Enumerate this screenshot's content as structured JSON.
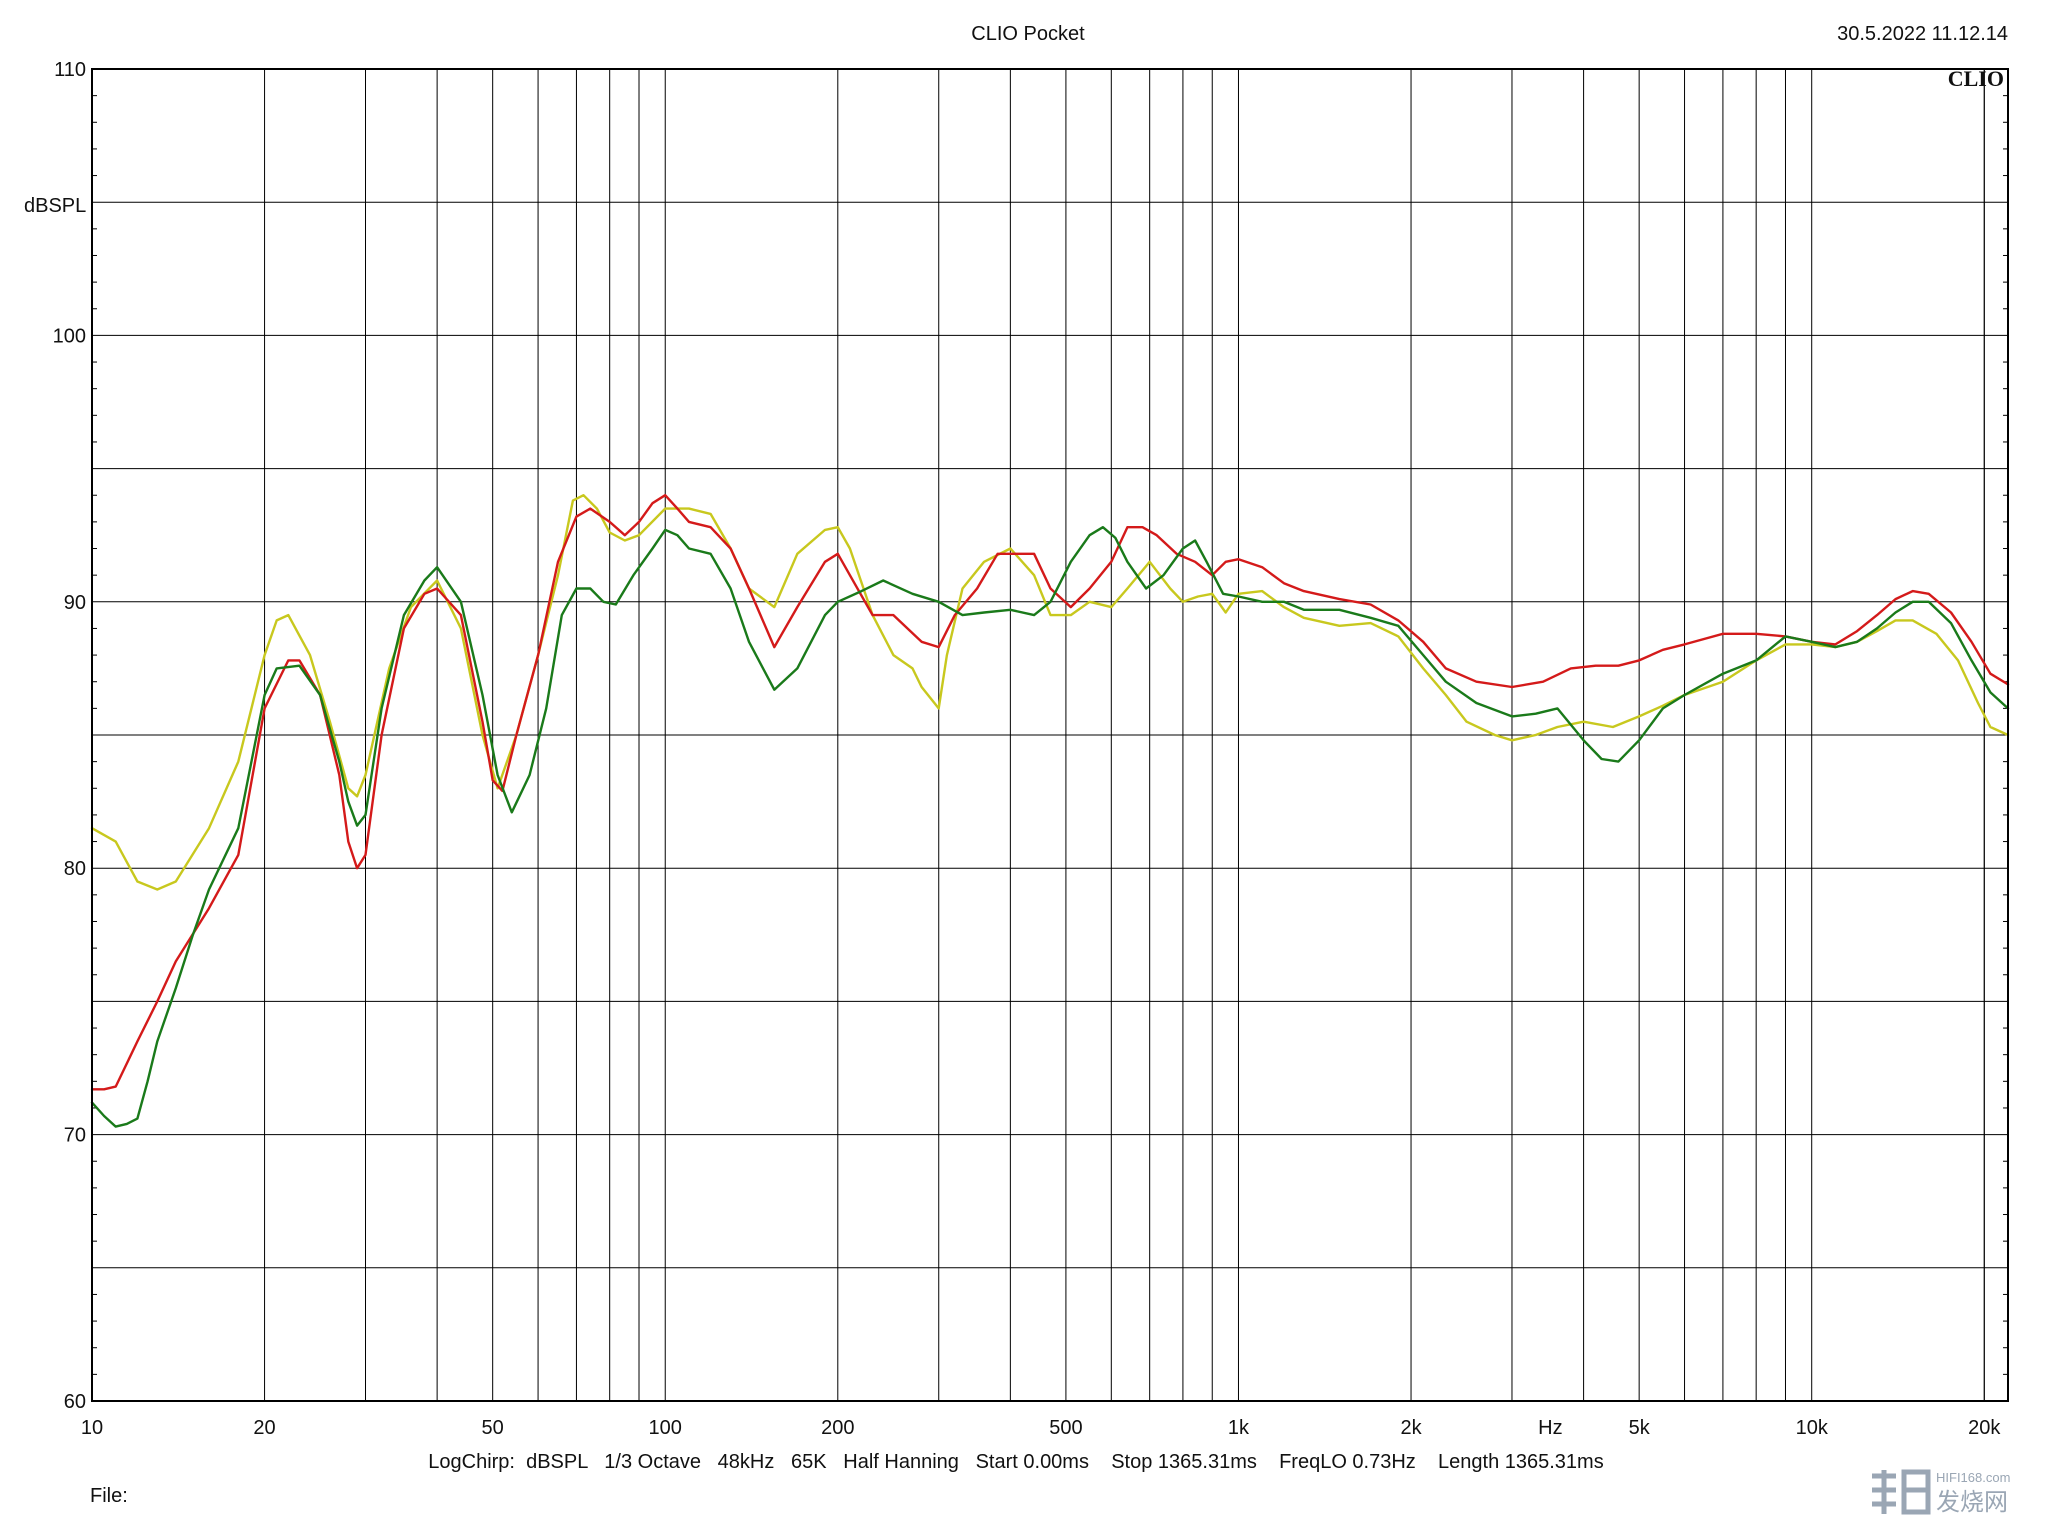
{
  "header": {
    "title": "CLIO Pocket",
    "timestamp": "30.5.2022 11.12.14",
    "brand": "CLIO"
  },
  "footer": {
    "settings": "LogChirp:  dBSPL   1/3 Octave   48kHz   65K   Half Hanning   Start 0.00ms    Stop 1365.31ms    FreqLO 0.73Hz    Length 1365.31ms",
    "file_label": "File:"
  },
  "watermark": {
    "site": "HIFI168.com",
    "name": "发烧网"
  },
  "chart_data": {
    "type": "line",
    "title": "",
    "xlabel": "Hz",
    "ylabel": "dBSPL",
    "x_scale": "log",
    "xlim": [
      10,
      22000
    ],
    "ylim": [
      60,
      110
    ],
    "grid": true,
    "y_ticks": [
      60,
      70,
      80,
      90,
      100,
      110
    ],
    "x_ticks": [
      {
        "value": 10,
        "label": "10"
      },
      {
        "value": 20,
        "label": "20"
      },
      {
        "value": 50,
        "label": "50"
      },
      {
        "value": 100,
        "label": "100"
      },
      {
        "value": 200,
        "label": "200"
      },
      {
        "value": 500,
        "label": "500"
      },
      {
        "value": 1000,
        "label": "1k"
      },
      {
        "value": 2000,
        "label": "2k"
      },
      {
        "value": 5000,
        "label": "5k"
      },
      {
        "value": 10000,
        "label": "10k"
      },
      {
        "value": 20000,
        "label": "20k"
      }
    ],
    "x_unit_label": {
      "label": "Hz",
      "at": 3500
    },
    "series": [
      {
        "color": "#c8c81e",
        "points": [
          [
            10,
            81.5
          ],
          [
            11,
            81.0
          ],
          [
            12,
            79.5
          ],
          [
            13,
            79.2
          ],
          [
            14,
            79.5
          ],
          [
            16,
            81.5
          ],
          [
            18,
            84.0
          ],
          [
            20,
            88.0
          ],
          [
            21,
            89.3
          ],
          [
            22,
            89.5
          ],
          [
            24,
            88.0
          ],
          [
            26,
            85.5
          ],
          [
            28,
            83.0
          ],
          [
            29,
            82.7
          ],
          [
            30,
            83.5
          ],
          [
            33,
            87.5
          ],
          [
            36,
            89.8
          ],
          [
            40,
            90.8
          ],
          [
            44,
            89.0
          ],
          [
            48,
            85.0
          ],
          [
            51,
            83.0
          ],
          [
            55,
            85.0
          ],
          [
            60,
            88.0
          ],
          [
            65,
            91.0
          ],
          [
            69,
            93.8
          ],
          [
            72,
            94.0
          ],
          [
            76,
            93.5
          ],
          [
            80,
            92.6
          ],
          [
            85,
            92.3
          ],
          [
            90,
            92.5
          ],
          [
            100,
            93.5
          ],
          [
            110,
            93.5
          ],
          [
            120,
            93.3
          ],
          [
            130,
            92.0
          ],
          [
            140,
            90.5
          ],
          [
            155,
            89.8
          ],
          [
            170,
            91.8
          ],
          [
            190,
            92.7
          ],
          [
            200,
            92.8
          ],
          [
            210,
            92.0
          ],
          [
            230,
            89.5
          ],
          [
            250,
            88.0
          ],
          [
            270,
            87.5
          ],
          [
            280,
            86.8
          ],
          [
            300,
            86.0
          ],
          [
            310,
            88.0
          ],
          [
            330,
            90.5
          ],
          [
            360,
            91.5
          ],
          [
            400,
            92.0
          ],
          [
            440,
            91.0
          ],
          [
            470,
            89.5
          ],
          [
            510,
            89.5
          ],
          [
            550,
            90.0
          ],
          [
            600,
            89.8
          ],
          [
            640,
            90.5
          ],
          [
            700,
            91.5
          ],
          [
            760,
            90.5
          ],
          [
            800,
            90.0
          ],
          [
            850,
            90.2
          ],
          [
            900,
            90.3
          ],
          [
            950,
            89.6
          ],
          [
            1000,
            90.3
          ],
          [
            1100,
            90.4
          ],
          [
            1200,
            89.8
          ],
          [
            1300,
            89.4
          ],
          [
            1500,
            89.1
          ],
          [
            1700,
            89.2
          ],
          [
            1900,
            88.7
          ],
          [
            2100,
            87.5
          ],
          [
            2300,
            86.5
          ],
          [
            2500,
            85.5
          ],
          [
            2800,
            85.0
          ],
          [
            3000,
            84.8
          ],
          [
            3300,
            85.0
          ],
          [
            3600,
            85.3
          ],
          [
            4000,
            85.5
          ],
          [
            4500,
            85.3
          ],
          [
            5000,
            85.7
          ],
          [
            5500,
            86.1
          ],
          [
            6000,
            86.5
          ],
          [
            7000,
            87.0
          ],
          [
            8000,
            87.8
          ],
          [
            9000,
            88.4
          ],
          [
            10000,
            88.4
          ],
          [
            11000,
            88.3
          ],
          [
            12000,
            88.5
          ],
          [
            13000,
            88.9
          ],
          [
            14000,
            89.3
          ],
          [
            15000,
            89.3
          ],
          [
            16500,
            88.8
          ],
          [
            18000,
            87.8
          ],
          [
            19500,
            86.2
          ],
          [
            20500,
            85.3
          ],
          [
            22000,
            85.0
          ]
        ]
      },
      {
        "color": "#d41a1a",
        "points": [
          [
            10,
            71.7
          ],
          [
            10.5,
            71.7
          ],
          [
            11,
            71.8
          ],
          [
            12,
            73.5
          ],
          [
            13,
            75.0
          ],
          [
            14,
            76.5
          ],
          [
            16,
            78.5
          ],
          [
            18,
            80.5
          ],
          [
            20,
            86.0
          ],
          [
            22,
            87.8
          ],
          [
            23,
            87.8
          ],
          [
            25,
            86.5
          ],
          [
            27,
            83.5
          ],
          [
            28,
            81.0
          ],
          [
            29,
            80.0
          ],
          [
            30,
            80.5
          ],
          [
            32,
            85.0
          ],
          [
            35,
            89.0
          ],
          [
            38,
            90.3
          ],
          [
            40,
            90.5
          ],
          [
            44,
            89.5
          ],
          [
            48,
            85.5
          ],
          [
            50,
            83.3
          ],
          [
            52,
            82.9
          ],
          [
            55,
            85.0
          ],
          [
            60,
            88.0
          ],
          [
            65,
            91.5
          ],
          [
            70,
            93.2
          ],
          [
            74,
            93.5
          ],
          [
            80,
            93.0
          ],
          [
            85,
            92.5
          ],
          [
            90,
            93.0
          ],
          [
            95,
            93.7
          ],
          [
            100,
            94.0
          ],
          [
            105,
            93.5
          ],
          [
            110,
            93.0
          ],
          [
            120,
            92.8
          ],
          [
            130,
            92.0
          ],
          [
            140,
            90.5
          ],
          [
            155,
            88.3
          ],
          [
            170,
            89.8
          ],
          [
            190,
            91.5
          ],
          [
            200,
            91.8
          ],
          [
            210,
            91.0
          ],
          [
            230,
            89.5
          ],
          [
            250,
            89.5
          ],
          [
            280,
            88.5
          ],
          [
            300,
            88.3
          ],
          [
            320,
            89.5
          ],
          [
            350,
            90.5
          ],
          [
            380,
            91.8
          ],
          [
            400,
            91.8
          ],
          [
            440,
            91.8
          ],
          [
            470,
            90.5
          ],
          [
            510,
            89.8
          ],
          [
            550,
            90.5
          ],
          [
            600,
            91.5
          ],
          [
            640,
            92.8
          ],
          [
            680,
            92.8
          ],
          [
            720,
            92.5
          ],
          [
            780,
            91.8
          ],
          [
            840,
            91.5
          ],
          [
            900,
            91.0
          ],
          [
            950,
            91.5
          ],
          [
            1000,
            91.6
          ],
          [
            1100,
            91.3
          ],
          [
            1200,
            90.7
          ],
          [
            1300,
            90.4
          ],
          [
            1500,
            90.1
          ],
          [
            1700,
            89.9
          ],
          [
            1900,
            89.3
          ],
          [
            2100,
            88.5
          ],
          [
            2300,
            87.5
          ],
          [
            2600,
            87.0
          ],
          [
            3000,
            86.8
          ],
          [
            3400,
            87.0
          ],
          [
            3800,
            87.5
          ],
          [
            4200,
            87.6
          ],
          [
            4600,
            87.6
          ],
          [
            5000,
            87.8
          ],
          [
            5500,
            88.2
          ],
          [
            6000,
            88.4
          ],
          [
            7000,
            88.8
          ],
          [
            8000,
            88.8
          ],
          [
            9000,
            88.7
          ],
          [
            10000,
            88.5
          ],
          [
            11000,
            88.4
          ],
          [
            12000,
            88.9
          ],
          [
            13000,
            89.5
          ],
          [
            14000,
            90.1
          ],
          [
            15000,
            90.4
          ],
          [
            16000,
            90.3
          ],
          [
            17500,
            89.6
          ],
          [
            19000,
            88.5
          ],
          [
            20500,
            87.3
          ],
          [
            22000,
            86.9
          ]
        ]
      },
      {
        "color": "#1a7a1a",
        "points": [
          [
            10,
            71.2
          ],
          [
            10.5,
            70.7
          ],
          [
            11,
            70.3
          ],
          [
            11.5,
            70.4
          ],
          [
            12,
            70.6
          ],
          [
            12.5,
            72.0
          ],
          [
            13,
            73.5
          ],
          [
            14,
            75.5
          ],
          [
            15,
            77.5
          ],
          [
            16,
            79.2
          ],
          [
            18,
            81.5
          ],
          [
            20,
            86.5
          ],
          [
            21,
            87.5
          ],
          [
            23,
            87.6
          ],
          [
            25,
            86.5
          ],
          [
            27,
            84.0
          ],
          [
            28,
            82.5
          ],
          [
            29,
            81.6
          ],
          [
            30,
            82.0
          ],
          [
            32,
            86.0
          ],
          [
            35,
            89.5
          ],
          [
            38,
            90.8
          ],
          [
            40,
            91.3
          ],
          [
            44,
            90.0
          ],
          [
            48,
            86.5
          ],
          [
            51,
            83.5
          ],
          [
            54,
            82.1
          ],
          [
            58,
            83.5
          ],
          [
            62,
            86.0
          ],
          [
            66,
            89.5
          ],
          [
            70,
            90.5
          ],
          [
            74,
            90.5
          ],
          [
            78,
            90.0
          ],
          [
            82,
            89.9
          ],
          [
            88,
            91.0
          ],
          [
            95,
            92.0
          ],
          [
            100,
            92.7
          ],
          [
            105,
            92.5
          ],
          [
            110,
            92.0
          ],
          [
            120,
            91.8
          ],
          [
            130,
            90.5
          ],
          [
            140,
            88.5
          ],
          [
            155,
            86.7
          ],
          [
            170,
            87.5
          ],
          [
            190,
            89.5
          ],
          [
            200,
            90.0
          ],
          [
            220,
            90.4
          ],
          [
            240,
            90.8
          ],
          [
            270,
            90.3
          ],
          [
            300,
            90.0
          ],
          [
            330,
            89.5
          ],
          [
            360,
            89.6
          ],
          [
            400,
            89.7
          ],
          [
            440,
            89.5
          ],
          [
            470,
            90.0
          ],
          [
            510,
            91.5
          ],
          [
            550,
            92.5
          ],
          [
            580,
            92.8
          ],
          [
            610,
            92.4
          ],
          [
            640,
            91.5
          ],
          [
            690,
            90.5
          ],
          [
            740,
            91.0
          ],
          [
            800,
            92.0
          ],
          [
            840,
            92.3
          ],
          [
            880,
            91.5
          ],
          [
            940,
            90.3
          ],
          [
            1000,
            90.2
          ],
          [
            1100,
            90.0
          ],
          [
            1200,
            90.0
          ],
          [
            1300,
            89.7
          ],
          [
            1500,
            89.7
          ],
          [
            1700,
            89.4
          ],
          [
            1900,
            89.1
          ],
          [
            2100,
            88.0
          ],
          [
            2300,
            87.0
          ],
          [
            2600,
            86.2
          ],
          [
            3000,
            85.7
          ],
          [
            3300,
            85.8
          ],
          [
            3600,
            86.0
          ],
          [
            4000,
            84.8
          ],
          [
            4300,
            84.1
          ],
          [
            4600,
            84.0
          ],
          [
            5000,
            84.8
          ],
          [
            5500,
            86.0
          ],
          [
            6000,
            86.5
          ],
          [
            7000,
            87.3
          ],
          [
            8000,
            87.8
          ],
          [
            9000,
            88.7
          ],
          [
            10000,
            88.5
          ],
          [
            11000,
            88.3
          ],
          [
            12000,
            88.5
          ],
          [
            13000,
            89.0
          ],
          [
            14000,
            89.6
          ],
          [
            15000,
            90.0
          ],
          [
            16000,
            90.0
          ],
          [
            17500,
            89.2
          ],
          [
            19000,
            87.8
          ],
          [
            20500,
            86.6
          ],
          [
            22000,
            86.0
          ]
        ]
      }
    ]
  }
}
